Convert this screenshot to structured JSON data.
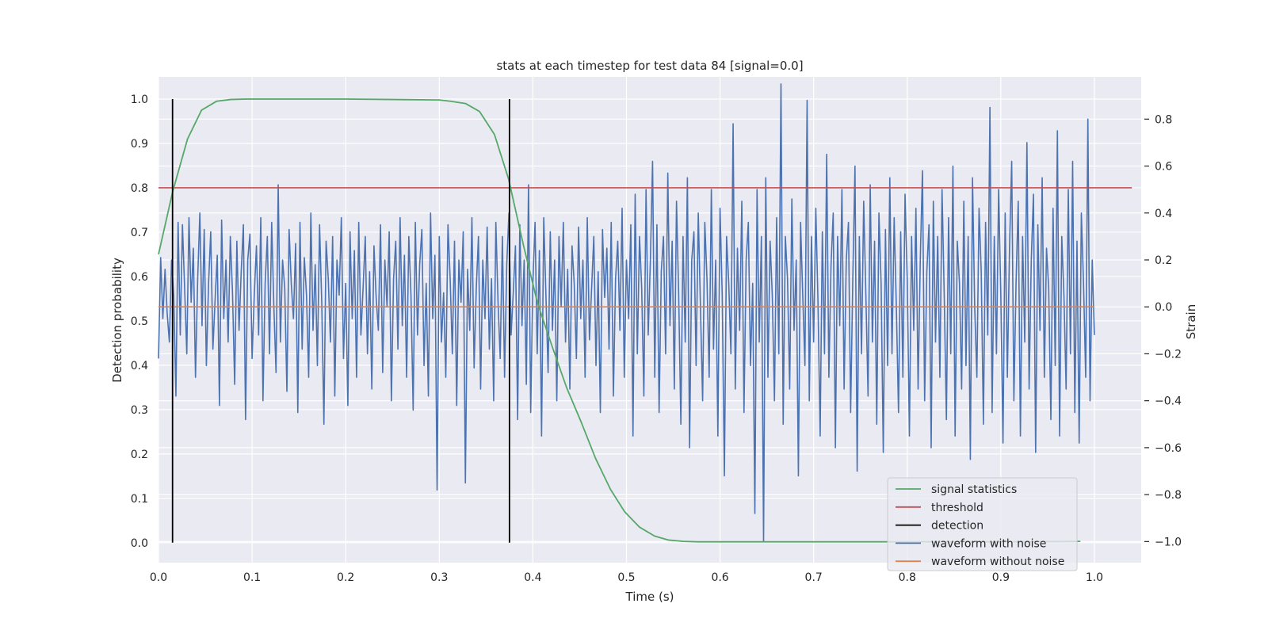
{
  "chart_data": {
    "type": "line",
    "title": "stats at each timestep for test data 84 [signal=0.0]",
    "xlabel": "Time (s)",
    "ylabel": "Detection probability",
    "y2label": "Strain",
    "xlim": [
      0.0,
      1.05
    ],
    "ylim": [
      -0.045,
      1.05
    ],
    "y2lim": [
      -1.09,
      0.98
    ],
    "xticks": [
      "0.0",
      "0.1",
      "0.2",
      "0.3",
      "0.4",
      "0.5",
      "0.6",
      "0.7",
      "0.8",
      "0.9",
      "1.0"
    ],
    "yticks": [
      "0.0",
      "0.1",
      "0.2",
      "0.3",
      "0.4",
      "0.5",
      "0.6",
      "0.7",
      "0.8",
      "0.9",
      "1.0"
    ],
    "y2ticks": [
      "−1.0",
      "−0.8",
      "−0.6",
      "−0.4",
      "−0.2",
      "0.0",
      "0.2",
      "0.4",
      "0.6",
      "0.8"
    ],
    "grid": true,
    "legend_position": "lower-right",
    "series": [
      {
        "name": "signal statistics",
        "color": "#55a868",
        "axis": "left",
        "x": [
          0.0,
          0.015,
          0.031,
          0.046,
          0.062,
          0.077,
          0.093,
          0.108,
          0.124,
          0.2,
          0.3,
          0.312,
          0.328,
          0.343,
          0.359,
          0.374,
          0.39,
          0.405,
          0.421,
          0.436,
          0.452,
          0.467,
          0.483,
          0.498,
          0.514,
          0.53,
          0.545,
          0.561,
          0.576,
          0.592,
          0.6,
          0.7,
          0.8,
          0.9,
          0.985
        ],
        "y": [
          0.65,
          0.79,
          0.91,
          0.975,
          0.995,
          0.999,
          1.0,
          1.0,
          1.0,
          1.0,
          0.998,
          0.995,
          0.99,
          0.972,
          0.92,
          0.82,
          0.67,
          0.54,
          0.44,
          0.35,
          0.27,
          0.19,
          0.12,
          0.07,
          0.035,
          0.015,
          0.006,
          0.003,
          0.002,
          0.002,
          0.002,
          0.002,
          0.002,
          0.002,
          0.003
        ]
      },
      {
        "name": "threshold",
        "color": "#c44e52",
        "axis": "left",
        "x": [
          0.0,
          1.04
        ],
        "y": [
          0.8,
          0.8
        ]
      },
      {
        "name": "detection",
        "color": "#000000",
        "axis": "left",
        "segments": [
          {
            "x": 0.015,
            "y": [
              0.0,
              1.0
            ]
          },
          {
            "x": 0.375,
            "y": [
              0.0,
              1.0
            ]
          }
        ]
      },
      {
        "name": "waveform with noise",
        "color": "#4c72b0",
        "axis": "right",
        "x_range": [
          0.0,
          1.0
        ],
        "y": [
          -0.22,
          0.21,
          -0.05,
          0.16,
          -0.03,
          -0.15,
          0.2,
          0.05,
          -0.38,
          0.36,
          -0.12,
          0.35,
          0.08,
          -0.2,
          0.38,
          0.02,
          0.25,
          -0.3,
          0.12,
          0.4,
          -0.08,
          0.33,
          -0.25,
          0.1,
          0.32,
          -0.18,
          0.03,
          0.22,
          -0.42,
          0.37,
          -0.05,
          0.2,
          -0.15,
          0.3,
          0.06,
          -0.33,
          0.28,
          -0.1,
          0.15,
          0.35,
          -0.48,
          0.2,
          0.31,
          -0.22,
          0.05,
          0.26,
          -0.12,
          0.38,
          -0.4,
          0.1,
          0.3,
          -0.2,
          0.36,
          0.0,
          -0.28,
          0.52,
          -0.15,
          0.2,
          0.08,
          -0.36,
          0.33,
          0.1,
          -0.05,
          0.27,
          -0.45,
          0.36,
          -0.18,
          0.21,
          0.05,
          -0.3,
          0.4,
          -0.1,
          0.18,
          -0.25,
          0.35,
          0.02,
          -0.5,
          0.28,
          0.12,
          -0.15,
          0.3,
          -0.38,
          0.2,
          0.05,
          0.38,
          -0.22,
          0.1,
          -0.42,
          0.32,
          -0.05,
          0.24,
          -0.3,
          0.36,
          -0.12,
          0.08,
          0.3,
          -0.2,
          0.15,
          -0.35,
          0.26,
          0.04,
          -0.1,
          0.35,
          -0.28,
          0.2,
          0.0,
          0.32,
          -0.4,
          0.12,
          0.28,
          -0.18,
          0.38,
          -0.08,
          0.22,
          -0.3,
          0.3,
          0.05,
          -0.44,
          0.36,
          -0.12,
          0.18,
          0.33,
          -0.25,
          0.1,
          -0.38,
          0.4,
          -0.05,
          0.22,
          -0.78,
          0.3,
          -0.15,
          0.06,
          -0.3,
          0.35,
          0.12,
          -0.2,
          0.28,
          -0.42,
          0.2,
          0.02,
          0.32,
          -0.75,
          0.16,
          -0.1,
          0.38,
          -0.26,
          0.08,
          0.3,
          -0.35,
          0.2,
          -0.05,
          0.34,
          -0.18,
          0.12,
          -0.4,
          0.36,
          0.02,
          -0.22,
          0.3,
          -0.3,
          0.18,
          0.4,
          -0.12,
          0.06,
          0.26,
          -0.48,
          0.35,
          -0.08,
          0.2,
          -0.33,
          0.52,
          -0.45,
          0.1,
          0.36,
          -0.2,
          0.24,
          -0.55,
          0.38,
          0.05,
          -0.28,
          0.32,
          -0.1,
          0.2,
          -0.4,
          0.3,
          0.0,
          0.36,
          -0.15,
          0.16,
          -0.35,
          0.26,
          0.1,
          -0.22,
          0.34,
          -0.05,
          0.2,
          -0.3,
          0.38,
          -0.14,
          0.08,
          0.3,
          -0.25,
          0.15,
          -0.45,
          0.33,
          0.04,
          0.25,
          -0.18,
          0.36,
          -0.38,
          0.12,
          0.28,
          -0.1,
          0.42,
          -0.3,
          0.2,
          -0.05,
          0.35,
          -0.55,
          0.48,
          -0.2,
          0.3,
          0.08,
          -0.38,
          0.5,
          -0.12,
          0.2,
          0.62,
          -0.3,
          0.35,
          -0.45,
          0.15,
          0.3,
          -0.2,
          0.57,
          -0.08,
          0.28,
          -0.35,
          0.45,
          0.05,
          -0.5,
          0.3,
          -0.15,
          0.55,
          -0.6,
          0.2,
          0.32,
          -0.25,
          0.4,
          0.0,
          -0.4,
          0.36,
          0.12,
          -0.3,
          0.5,
          -0.18,
          0.2,
          -0.55,
          0.42,
          0.05,
          -0.72,
          0.3,
          0.1,
          -0.2,
          0.78,
          -0.35,
          0.25,
          -0.1,
          0.45,
          -0.45,
          0.2,
          0.36,
          -0.25,
          0.1,
          -0.88,
          0.5,
          -0.15,
          0.3,
          -1.0,
          0.55,
          -0.3,
          0.28,
          0.05,
          -0.4,
          0.38,
          -0.2,
          0.95,
          -0.5,
          0.3,
          0.12,
          -0.35,
          0.46,
          -0.1,
          0.2,
          -0.72,
          0.36,
          0.05,
          -0.25,
          0.88,
          -0.4,
          0.3,
          -0.15,
          0.42,
          0.02,
          -0.55,
          0.32,
          -0.2,
          0.65,
          -0.3,
          0.18,
          0.4,
          -0.6,
          0.3,
          -0.08,
          0.5,
          -0.35,
          0.2,
          0.36,
          -0.45,
          0.12,
          0.6,
          -0.7,
          0.3,
          -0.2,
          0.45,
          0.05,
          -0.38,
          0.52,
          -0.15,
          0.28,
          -0.5,
          0.4,
          0.1,
          -0.62,
          0.33,
          -0.25,
          0.55,
          -0.2,
          0.38,
          0.0,
          -0.45,
          0.32,
          -0.3,
          0.48,
          0.12,
          -0.55,
          0.3,
          -0.1,
          0.42,
          -0.35,
          0.2,
          0.58,
          -0.4,
          0.15,
          0.35,
          -0.6,
          0.45,
          -0.15,
          0.3,
          -0.3,
          0.5,
          0.05,
          -0.48,
          0.38,
          -0.2,
          0.6,
          -0.55,
          0.28,
          0.1,
          -0.35,
          0.45,
          -0.25,
          0.3,
          -0.65,
          0.55,
          0.0,
          -0.3,
          0.42,
          0.15,
          -0.5,
          0.36,
          -0.12,
          0.85,
          -0.45,
          0.3,
          -0.2,
          0.5,
          0.05,
          -0.58,
          0.4,
          -0.3,
          0.25,
          0.62,
          -0.4,
          0.1,
          0.45,
          -0.55,
          0.3,
          -0.15,
          0.7,
          -0.35,
          0.2,
          0.48,
          -0.62,
          0.35,
          -0.1,
          0.55,
          -0.3,
          0.25,
          0.08,
          -0.48,
          0.42,
          -0.25,
          0.75,
          -0.55,
          0.3,
          0.05,
          -0.35,
          0.5,
          -0.2,
          0.62,
          -0.45,
          0.28,
          -0.58,
          0.4,
          0.1,
          -0.3,
          0.8,
          -0.4,
          0.2,
          -0.12
        ]
      },
      {
        "name": "waveform without noise",
        "color": "#dd8452",
        "axis": "right",
        "x": [
          0.0,
          1.0
        ],
        "y": [
          0.0,
          0.0
        ]
      }
    ]
  }
}
